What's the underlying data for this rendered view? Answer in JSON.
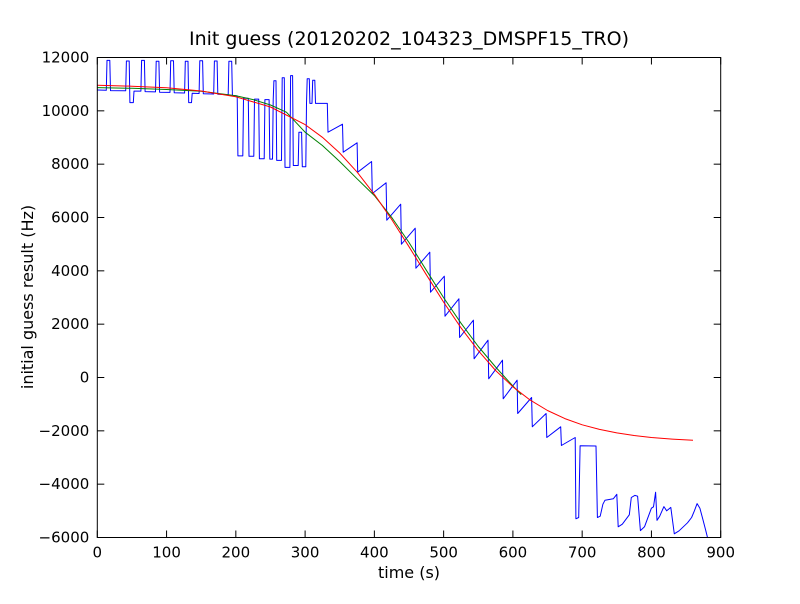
{
  "figure": {
    "background": "#ffffff",
    "frame_color": "#000000"
  },
  "chart_data": {
    "type": "line",
    "title": "Init guess (20120202_104323_DMSPF15_TRO)",
    "xlabel": "time (s)",
    "ylabel": "initial guess result (Hz)",
    "xlim": [
      0,
      900
    ],
    "ylim": [
      -6000,
      12000
    ],
    "xticks": [
      0,
      100,
      200,
      300,
      400,
      500,
      600,
      700,
      800,
      900
    ],
    "yticks": [
      -6000,
      -4000,
      -2000,
      0,
      2000,
      4000,
      6000,
      8000,
      10000,
      12000
    ],
    "grid": false,
    "legend_position": "none",
    "series": [
      {
        "name": "initial-guess-data",
        "color": "#0000ff",
        "points": [
          [
            0,
            10780
          ],
          [
            13,
            10770
          ],
          [
            14,
            11890
          ],
          [
            18,
            11890
          ],
          [
            19,
            10760
          ],
          [
            41,
            10750
          ],
          [
            42,
            11870
          ],
          [
            46,
            11870
          ],
          [
            47,
            10310
          ],
          [
            52,
            10310
          ],
          [
            53,
            10740
          ],
          [
            63,
            10740
          ],
          [
            64,
            11890
          ],
          [
            68,
            11890
          ],
          [
            69,
            10720
          ],
          [
            84,
            10710
          ],
          [
            85,
            11860
          ],
          [
            89,
            11860
          ],
          [
            90,
            10700
          ],
          [
            105,
            10690
          ],
          [
            106,
            11880
          ],
          [
            110,
            11880
          ],
          [
            111,
            10680
          ],
          [
            126,
            10670
          ],
          [
            127,
            11860
          ],
          [
            131,
            11860
          ],
          [
            132,
            10310
          ],
          [
            136,
            10310
          ],
          [
            137,
            10660
          ],
          [
            147,
            10650
          ],
          [
            148,
            11880
          ],
          [
            152,
            11880
          ],
          [
            153,
            10640
          ],
          [
            168,
            10630
          ],
          [
            169,
            11870
          ],
          [
            173,
            11870
          ],
          [
            174,
            10620
          ],
          [
            189,
            10600
          ],
          [
            190,
            11860
          ],
          [
            194,
            11860
          ],
          [
            195,
            10580
          ],
          [
            202,
            10560
          ],
          [
            203,
            8310
          ],
          [
            210,
            8310
          ],
          [
            211,
            10470
          ],
          [
            218,
            10470
          ],
          [
            219,
            8300
          ],
          [
            226,
            8300
          ],
          [
            227,
            10440
          ],
          [
            233,
            10440
          ],
          [
            234,
            8200
          ],
          [
            241,
            8200
          ],
          [
            242,
            10420
          ],
          [
            248,
            10420
          ],
          [
            249,
            8190
          ],
          [
            253,
            8190
          ],
          [
            254,
            10400
          ],
          [
            255,
            11130
          ],
          [
            258,
            11130
          ],
          [
            259,
            8140
          ],
          [
            266,
            8140
          ],
          [
            267,
            11240
          ],
          [
            270,
            11240
          ],
          [
            271,
            7880
          ],
          [
            278,
            7880
          ],
          [
            279,
            11320
          ],
          [
            282,
            11320
          ],
          [
            283,
            7950
          ],
          [
            290,
            7950
          ],
          [
            291,
            9200
          ],
          [
            295,
            9200
          ],
          [
            296,
            7900
          ],
          [
            301,
            7900
          ],
          [
            302,
            10280
          ],
          [
            303,
            11200
          ],
          [
            306,
            11200
          ],
          [
            307,
            10280
          ],
          [
            310,
            10280
          ],
          [
            311,
            11150
          ],
          [
            314,
            11150
          ],
          [
            315,
            10280
          ],
          [
            332,
            10280
          ],
          [
            333,
            9200
          ],
          [
            354,
            9500
          ],
          [
            355,
            8450
          ],
          [
            375,
            8800
          ],
          [
            376,
            7700
          ],
          [
            396,
            8100
          ],
          [
            397,
            6900
          ],
          [
            417,
            7300
          ],
          [
            418,
            5900
          ],
          [
            438,
            6500
          ],
          [
            439,
            5000
          ],
          [
            459,
            5600
          ],
          [
            460,
            4100
          ],
          [
            480,
            4700
          ],
          [
            481,
            3200
          ],
          [
            501,
            3800
          ],
          [
            502,
            2300
          ],
          [
            522,
            2950
          ],
          [
            523,
            1500
          ],
          [
            543,
            2150
          ],
          [
            544,
            700
          ],
          [
            564,
            1400
          ],
          [
            565,
            -50
          ],
          [
            585,
            650
          ],
          [
            586,
            -800
          ],
          [
            606,
            -100
          ],
          [
            607,
            -1350
          ],
          [
            627,
            -750
          ],
          [
            628,
            -1850
          ],
          [
            648,
            -1350
          ],
          [
            649,
            -2250
          ],
          [
            669,
            -1850
          ],
          [
            670,
            -2550
          ],
          [
            690,
            -2250
          ],
          [
            691,
            -5300
          ],
          [
            695,
            -5250
          ],
          [
            697,
            -2560
          ],
          [
            720,
            -2570
          ],
          [
            722,
            -5250
          ],
          [
            726,
            -5200
          ],
          [
            730,
            -4750
          ],
          [
            733,
            -4600
          ],
          [
            745,
            -4550
          ],
          [
            750,
            -4380
          ],
          [
            752,
            -5600
          ],
          [
            758,
            -5500
          ],
          [
            768,
            -5150
          ],
          [
            771,
            -4500
          ],
          [
            776,
            -4420
          ],
          [
            780,
            -4450
          ],
          [
            784,
            -5740
          ],
          [
            790,
            -5600
          ],
          [
            800,
            -4900
          ],
          [
            803,
            -4850
          ],
          [
            806,
            -4300
          ],
          [
            808,
            -5360
          ],
          [
            812,
            -5200
          ],
          [
            818,
            -4840
          ],
          [
            822,
            -5000
          ],
          [
            828,
            -4870
          ],
          [
            833,
            -5860
          ],
          [
            840,
            -5750
          ],
          [
            852,
            -5450
          ],
          [
            858,
            -5250
          ],
          [
            862,
            -5000
          ],
          [
            866,
            -4730
          ],
          [
            870,
            -4900
          ],
          [
            874,
            -5300
          ],
          [
            878,
            -5700
          ],
          [
            881,
            -6000
          ]
        ]
      },
      {
        "name": "green-fit-curve",
        "color": "#008000",
        "points": [
          [
            0,
            10870
          ],
          [
            50,
            10845
          ],
          [
            100,
            10800
          ],
          [
            150,
            10735
          ],
          [
            200,
            10565
          ],
          [
            225,
            10420
          ],
          [
            250,
            10220
          ],
          [
            273,
            9950
          ],
          [
            300,
            9200
          ],
          [
            325,
            8700
          ],
          [
            350,
            8100
          ],
          [
            375,
            7450
          ],
          [
            400,
            6820
          ],
          [
            425,
            6004
          ],
          [
            450,
            5064
          ],
          [
            475,
            4025
          ],
          [
            500,
            2997
          ],
          [
            525,
            2035
          ],
          [
            550,
            1164
          ],
          [
            575,
            394
          ],
          [
            600,
            -320
          ],
          [
            612,
            -643
          ]
        ]
      },
      {
        "name": "red-fit-curve",
        "color": "#ff0000",
        "points": [
          [
            0,
            10960
          ],
          [
            50,
            10925
          ],
          [
            100,
            10862
          ],
          [
            150,
            10743
          ],
          [
            200,
            10528
          ],
          [
            250,
            10144
          ],
          [
            300,
            9482
          ],
          [
            325,
            9009
          ],
          [
            350,
            8419
          ],
          [
            375,
            7703
          ],
          [
            400,
            6865
          ],
          [
            425,
            5924
          ],
          [
            450,
            4904
          ],
          [
            475,
            3855
          ],
          [
            500,
            2827
          ],
          [
            525,
            1865
          ],
          [
            550,
            1004
          ],
          [
            575,
            264
          ],
          [
            600,
            -350
          ],
          [
            625,
            -847
          ],
          [
            650,
            -1239
          ],
          [
            675,
            -1541
          ],
          [
            700,
            -1773
          ],
          [
            725,
            -1948
          ],
          [
            750,
            -2079
          ],
          [
            775,
            -2176
          ],
          [
            800,
            -2249
          ],
          [
            830,
            -2311
          ],
          [
            860,
            -2354
          ]
        ]
      }
    ]
  }
}
